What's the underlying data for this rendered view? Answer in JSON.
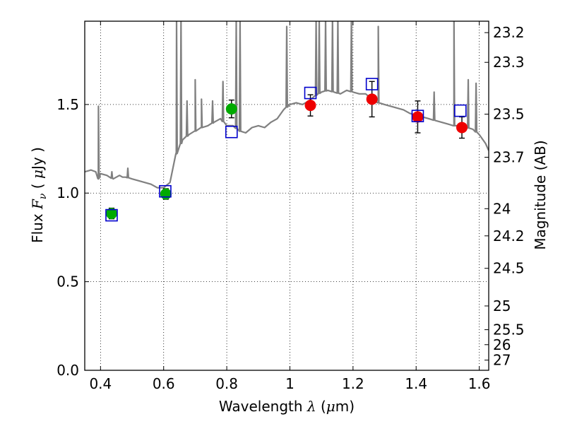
{
  "chart_data": {
    "type": "scatter",
    "xlabel": "Wavelength",
    "xlabel_math": "λ",
    "xlabel_unit_open": " (",
    "xlabel_unit_mu": "μ",
    "xlabel_unit_close": "m)",
    "ylabel": "Flux",
    "ylabel_math": "F",
    "ylabel_math_sub": "ν",
    "ylabel_unit_open": " ( ",
    "ylabel_unit_mu": "μ",
    "ylabel_unit_close": "Jy )",
    "y2label": "Magnitude (AB)",
    "xlim": [
      0.35,
      1.63
    ],
    "ylim": [
      0.0,
      1.97
    ],
    "grid": true,
    "grid_style": "dotted",
    "x_ticks": [
      {
        "value": 0.4,
        "label": "0.4"
      },
      {
        "value": 0.6,
        "label": "0.6"
      },
      {
        "value": 0.8,
        "label": "0.8"
      },
      {
        "value": 1.0,
        "label": "1"
      },
      {
        "value": 1.2,
        "label": "1.2"
      },
      {
        "value": 1.4,
        "label": "1.4"
      },
      {
        "value": 1.6,
        "label": "1.6"
      }
    ],
    "y_ticks": [
      {
        "value": 0.0,
        "label": "0.0"
      },
      {
        "value": 0.5,
        "label": "0.5"
      },
      {
        "value": 1.0,
        "label": "1.0"
      },
      {
        "value": 1.5,
        "label": "1.5"
      }
    ],
    "y2_ticks": [
      {
        "value": 23.2,
        "label": "23.2"
      },
      {
        "value": 23.3,
        "label": "23.3"
      },
      {
        "value": 23.5,
        "label": "23.5"
      },
      {
        "value": 23.7,
        "label": "23.7"
      },
      {
        "value": 24.0,
        "label": "24"
      },
      {
        "value": 24.2,
        "label": "24.2"
      },
      {
        "value": 24.5,
        "label": "24.5"
      },
      {
        "value": 25.0,
        "label": "25"
      },
      {
        "value": 25.5,
        "label": "25.5"
      },
      {
        "value": 26.0,
        "label": "26"
      },
      {
        "value": 27.0,
        "label": "27"
      }
    ],
    "y2_zeropoint_ujy": 3630.78,
    "series": [
      {
        "kind": "line",
        "color": "#808080",
        "points": [
          [
            0.35,
            1.12
          ],
          [
            0.37,
            1.13
          ],
          [
            0.385,
            1.12
          ],
          [
            0.393,
            1.08
          ],
          [
            0.4,
            1.11
          ],
          [
            0.42,
            1.1
          ],
          [
            0.44,
            1.08
          ],
          [
            0.46,
            1.1
          ],
          [
            0.47,
            1.09
          ],
          [
            0.48,
            1.09
          ],
          [
            0.5,
            1.08
          ],
          [
            0.52,
            1.07
          ],
          [
            0.54,
            1.06
          ],
          [
            0.56,
            1.05
          ],
          [
            0.58,
            1.03
          ],
          [
            0.6,
            1.03
          ],
          [
            0.62,
            1.06
          ],
          [
            0.64,
            1.22
          ],
          [
            0.66,
            1.3
          ],
          [
            0.68,
            1.33
          ],
          [
            0.7,
            1.35
          ],
          [
            0.72,
            1.37
          ],
          [
            0.74,
            1.38
          ],
          [
            0.76,
            1.4
          ],
          [
            0.78,
            1.42
          ],
          [
            0.8,
            1.38
          ],
          [
            0.82,
            1.38
          ],
          [
            0.84,
            1.35
          ],
          [
            0.86,
            1.34
          ],
          [
            0.88,
            1.37
          ],
          [
            0.9,
            1.38
          ],
          [
            0.92,
            1.37
          ],
          [
            0.94,
            1.4
          ],
          [
            0.96,
            1.42
          ],
          [
            0.98,
            1.47
          ],
          [
            1.0,
            1.5
          ],
          [
            1.02,
            1.51
          ],
          [
            1.04,
            1.5
          ],
          [
            1.06,
            1.52
          ],
          [
            1.08,
            1.55
          ],
          [
            1.1,
            1.57
          ],
          [
            1.12,
            1.58
          ],
          [
            1.14,
            1.57
          ],
          [
            1.16,
            1.56
          ],
          [
            1.18,
            1.58
          ],
          [
            1.2,
            1.57
          ],
          [
            1.22,
            1.56
          ],
          [
            1.24,
            1.56
          ],
          [
            1.26,
            1.53
          ],
          [
            1.28,
            1.51
          ],
          [
            1.3,
            1.5
          ],
          [
            1.32,
            1.49
          ],
          [
            1.34,
            1.48
          ],
          [
            1.36,
            1.47
          ],
          [
            1.38,
            1.45
          ],
          [
            1.4,
            1.44
          ],
          [
            1.42,
            1.43
          ],
          [
            1.44,
            1.42
          ],
          [
            1.46,
            1.41
          ],
          [
            1.48,
            1.4
          ],
          [
            1.5,
            1.39
          ],
          [
            1.52,
            1.38
          ],
          [
            1.54,
            1.38
          ],
          [
            1.56,
            1.37
          ],
          [
            1.58,
            1.36
          ],
          [
            1.6,
            1.33
          ],
          [
            1.62,
            1.28
          ],
          [
            1.63,
            1.24
          ]
        ]
      },
      {
        "kind": "points",
        "marker": "circle",
        "color": "#00aa00",
        "points": [
          {
            "x": 0.435,
            "y": 0.885,
            "err": 0.03
          },
          {
            "x": 0.607,
            "y": 0.995,
            "err": 0.03
          },
          {
            "x": 0.815,
            "y": 1.475,
            "err": 0.05
          }
        ]
      },
      {
        "kind": "points",
        "marker": "circle",
        "color": "#ee0000",
        "points": [
          {
            "x": 1.065,
            "y": 1.495,
            "err": 0.06
          },
          {
            "x": 1.26,
            "y": 1.53,
            "err": 0.1
          },
          {
            "x": 1.405,
            "y": 1.43,
            "err": 0.09
          },
          {
            "x": 1.545,
            "y": 1.37,
            "err": 0.06
          }
        ]
      },
      {
        "kind": "points",
        "marker": "square-open",
        "color": "#0000cc",
        "points": [
          {
            "x": 0.435,
            "y": 0.875
          },
          {
            "x": 0.605,
            "y": 1.01
          },
          {
            "x": 0.815,
            "y": 1.345
          },
          {
            "x": 1.065,
            "y": 1.565
          },
          {
            "x": 1.26,
            "y": 1.615
          },
          {
            "x": 1.405,
            "y": 1.435
          },
          {
            "x": 1.54,
            "y": 1.465
          }
        ]
      }
    ],
    "emission_lines": [
      {
        "x": 0.3935,
        "peak": 1.49
      },
      {
        "x": 0.436,
        "peak": 1.12
      },
      {
        "x": 0.4865,
        "peak": 1.14
      },
      {
        "x": 0.641,
        "peak": 1.98
      },
      {
        "x": 0.655,
        "peak": 1.98
      },
      {
        "x": 0.674,
        "peak": 1.52
      },
      {
        "x": 0.7,
        "peak": 1.64
      },
      {
        "x": 0.72,
        "peak": 1.53
      },
      {
        "x": 0.755,
        "peak": 1.52
      },
      {
        "x": 0.788,
        "peak": 1.63
      },
      {
        "x": 0.83,
        "peak": 1.98
      },
      {
        "x": 0.842,
        "peak": 1.98
      },
      {
        "x": 0.99,
        "peak": 1.94
      },
      {
        "x": 1.083,
        "peak": 1.98
      },
      {
        "x": 1.093,
        "peak": 1.98
      },
      {
        "x": 1.113,
        "peak": 1.98
      },
      {
        "x": 1.135,
        "peak": 1.98
      },
      {
        "x": 1.152,
        "peak": 1.98
      },
      {
        "x": 1.195,
        "peak": 1.98
      },
      {
        "x": 1.28,
        "peak": 1.94
      },
      {
        "x": 1.457,
        "peak": 1.57
      },
      {
        "x": 1.52,
        "peak": 1.98
      },
      {
        "x": 1.565,
        "peak": 1.64
      },
      {
        "x": 1.59,
        "peak": 1.62
      }
    ]
  }
}
